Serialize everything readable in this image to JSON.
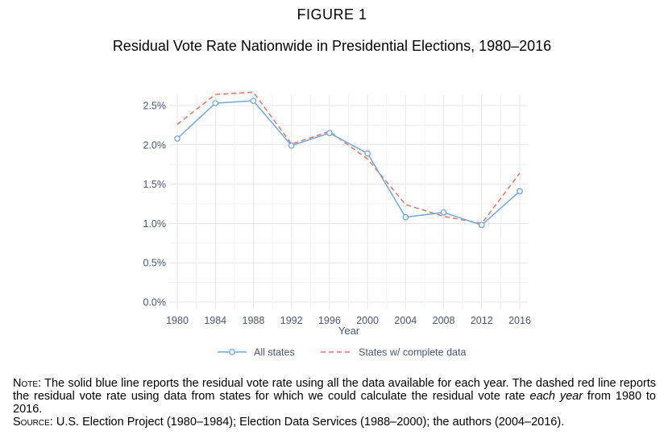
{
  "figure": {
    "label": "FIGURE 1",
    "title": "Residual Vote Rate Nationwide in Presidential Elections, 1980–2016"
  },
  "chart_data": {
    "type": "line",
    "xlabel": "Year",
    "ylabel": "",
    "x": [
      1980,
      1984,
      1988,
      1992,
      1996,
      2000,
      2004,
      2008,
      2012,
      2016
    ],
    "ylim": [
      0,
      2.7
    ],
    "yticks": [
      0,
      0.5,
      1.0,
      1.5,
      2.0,
      2.5
    ],
    "ytick_labels": [
      "0.0%",
      "0.5%",
      "1.0%",
      "1.5%",
      "2.0%",
      "2.5%"
    ],
    "grid": true,
    "legend_position": "bottom",
    "series": [
      {
        "name": "All states",
        "values": [
          2.08,
          2.53,
          2.56,
          1.99,
          2.15,
          1.89,
          1.08,
          1.14,
          0.98,
          1.41
        ],
        "color": "#6fa8e0",
        "style": "solid",
        "marker": "open-circle"
      },
      {
        "name": "States w/ complete data",
        "values": [
          2.26,
          2.64,
          2.67,
          2.01,
          2.17,
          1.82,
          1.24,
          1.09,
          1.0,
          1.64
        ],
        "color": "#f07060",
        "style": "dashed",
        "marker": "none"
      }
    ]
  },
  "note": {
    "note_label": "Note",
    "note_text": ": The solid blue line reports the residual vote rate using all the data available for each year. The dashed red line reports the residual vote rate using data from states for which we could calculate the residual vote rate ",
    "note_emph": "each year",
    "note_tail": " from 1980 to 2016.",
    "source_label": "Source",
    "source_text": ": U.S. Election Project (1980–1984); Election Data Services (1988–2000); the authors (2004–2016)."
  }
}
